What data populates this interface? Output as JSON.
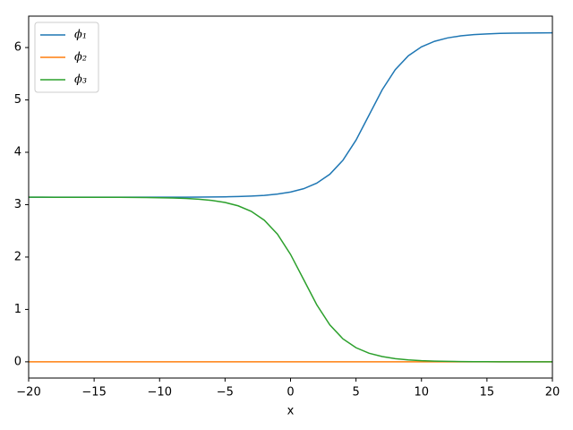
{
  "chart_data": {
    "type": "line",
    "x_label": "x",
    "x": [
      -20,
      -19,
      -18,
      -17,
      -16,
      -15,
      -14,
      -13,
      -12,
      -11,
      -10,
      -9,
      -8,
      -7,
      -6,
      -5,
      -4,
      -3,
      -2,
      -1,
      0,
      1,
      2,
      3,
      4,
      5,
      6,
      7,
      8,
      9,
      10,
      11,
      12,
      13,
      14,
      15,
      16,
      17,
      18,
      19,
      20
    ],
    "series": [
      {
        "name": "ϕ₁",
        "color": "#1f77b4",
        "values": [
          3.142,
          3.142,
          3.142,
          3.142,
          3.142,
          3.142,
          3.142,
          3.142,
          3.142,
          3.142,
          3.142,
          3.143,
          3.143,
          3.145,
          3.147,
          3.15,
          3.155,
          3.164,
          3.178,
          3.202,
          3.241,
          3.305,
          3.411,
          3.581,
          3.847,
          4.232,
          4.712,
          5.193,
          5.578,
          5.844,
          6.014,
          6.119,
          6.184,
          6.223,
          6.247,
          6.261,
          6.27,
          6.275,
          6.278,
          6.28,
          6.281
        ]
      },
      {
        "name": "ϕ₂",
        "color": "#ff7f0e",
        "values": [
          0,
          0,
          0,
          0,
          0,
          0,
          0,
          0,
          0,
          0,
          0,
          0,
          0,
          0,
          0,
          0,
          0,
          0,
          0,
          0,
          0,
          0,
          0,
          0,
          0,
          0,
          0,
          0,
          0,
          0,
          0,
          0,
          0,
          0,
          0,
          0,
          0,
          0,
          0,
          0,
          0
        ]
      },
      {
        "name": "ϕ₃",
        "color": "#2ca02c",
        "values": [
          3.142,
          3.142,
          3.141,
          3.141,
          3.141,
          3.141,
          3.141,
          3.14,
          3.139,
          3.137,
          3.133,
          3.128,
          3.119,
          3.105,
          3.081,
          3.042,
          2.978,
          2.873,
          2.703,
          2.437,
          2.051,
          1.571,
          1.09,
          0.705,
          0.439,
          0.269,
          0.164,
          0.1,
          0.06,
          0.037,
          0.022,
          0.013,
          0.008,
          0.005,
          0.003,
          0.002,
          0.001,
          0.001,
          0,
          0,
          0
        ]
      }
    ],
    "xlim": [
      -20,
      20
    ],
    "ylim": [
      -0.31,
      6.6
    ],
    "xticks": [
      {
        "value": -20,
        "label": "−20"
      },
      {
        "value": -15,
        "label": "−15"
      },
      {
        "value": -10,
        "label": "−10"
      },
      {
        "value": -5,
        "label": "−5"
      },
      0,
      5,
      10,
      15,
      20
    ],
    "yticks": [
      0,
      1,
      2,
      3,
      4,
      5,
      6
    ],
    "legend": "upper-left",
    "grid": false
  }
}
